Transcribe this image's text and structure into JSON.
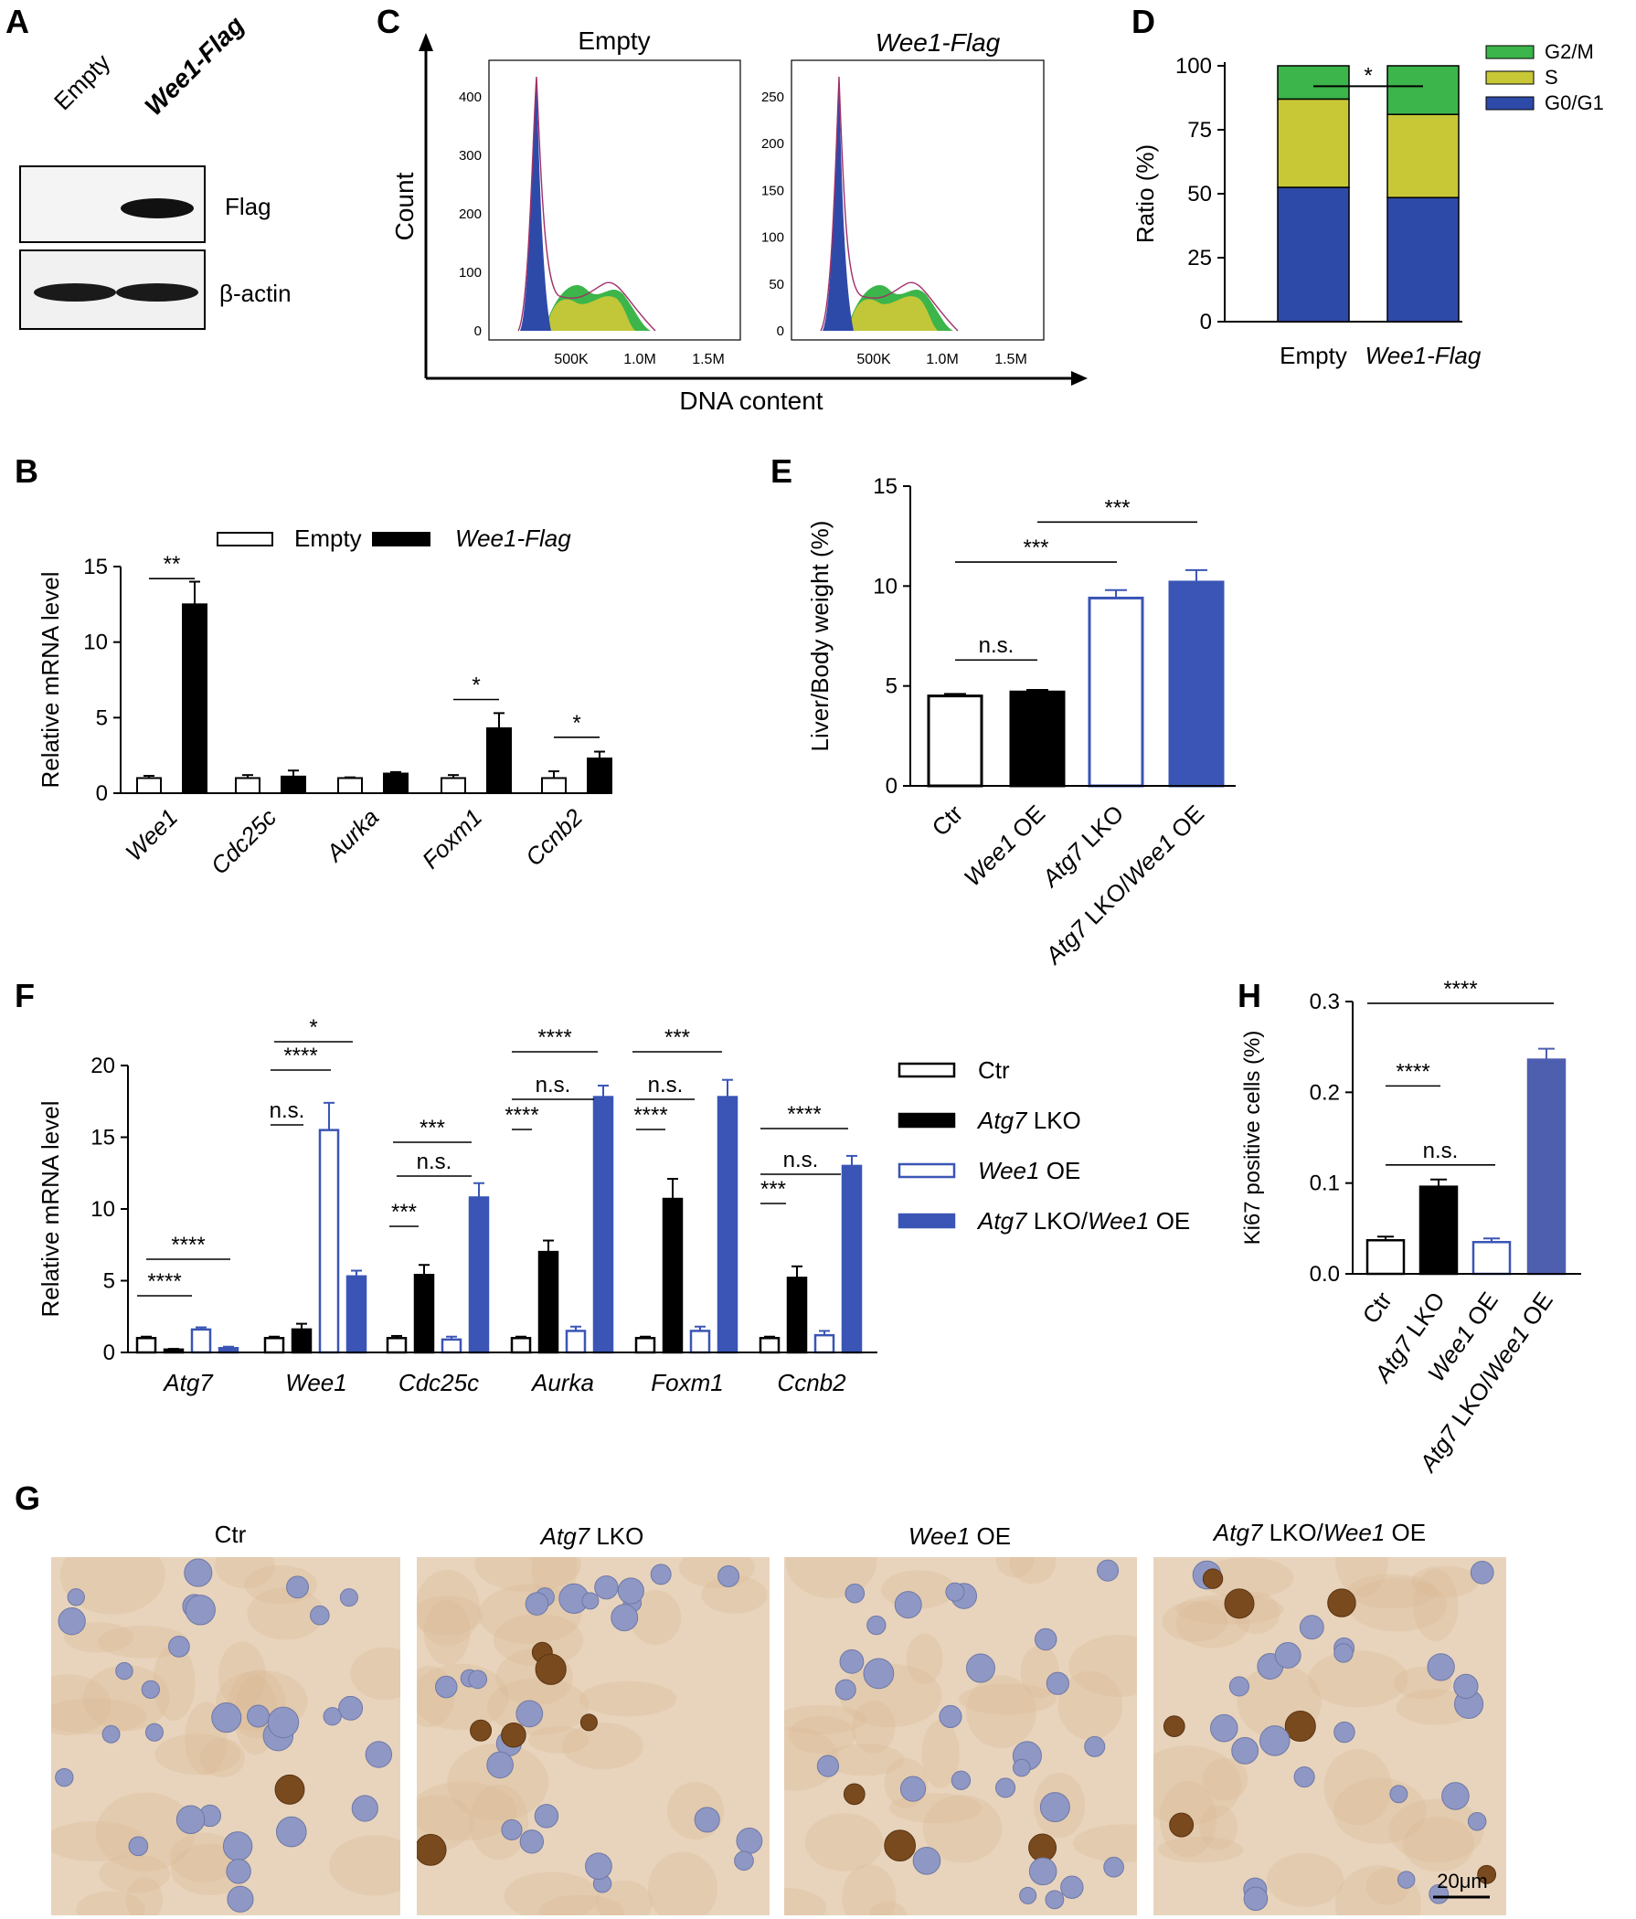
{
  "colors": {
    "g2m": "#3cb54a",
    "s": "#c8c837",
    "g0g1": "#2e4aa8",
    "ctr_fill": "#ffffff",
    "lko_fill": "#000000",
    "oe_outline": "#3a55b5",
    "combo_fill": "#3a55b5",
    "h_combo_fill": "#4e5fb0",
    "dna_stain": "#c9a27a",
    "nucleus": "#8f98c4",
    "ki67_positive": "#7a4a1f"
  },
  "panels": {
    "A": "A",
    "B": "B",
    "C": "C",
    "D": "D",
    "E": "E",
    "F": "F",
    "G": "G",
    "H": "H"
  },
  "panel_a": {
    "lanes": [
      "Empty",
      "Wee1-Flag"
    ],
    "bands": [
      "Flag",
      "β-actin"
    ]
  },
  "panel_c": {
    "axis_y": "Count",
    "axis_x": "DNA content",
    "plots": [
      {
        "title": "Empty",
        "yticks": [
          "0",
          "100",
          "200",
          "300",
          "400"
        ],
        "xticks": [
          "500K",
          "1.0M",
          "1.5M"
        ]
      },
      {
        "title": "Wee1-Flag",
        "yticks": [
          "0",
          "50",
          "100",
          "150",
          "200",
          "250"
        ],
        "xticks": [
          "500K",
          "1.0M",
          "1.5M"
        ]
      }
    ]
  },
  "panel_g": {
    "titles": [
      {
        "italic": "",
        "plain": "Ctr"
      },
      {
        "italic": "Atg7",
        "plain": " LKO"
      },
      {
        "italic": "Wee1",
        "plain": " OE"
      },
      {
        "italic": "Atg7",
        "plain": " LKO/",
        "italic2": "Wee1",
        "plain2": " OE"
      }
    ],
    "scale_bar": "20μm"
  },
  "chart_data": [
    {
      "panel": "B",
      "type": "bar",
      "ylabel": "Relative mRNA level",
      "ylim": [
        0,
        15
      ],
      "yticks": [
        0,
        5,
        10,
        15
      ],
      "categories": [
        "Wee1",
        "Cdc25c",
        "Aurka",
        "Foxm1",
        "Ccnb2"
      ],
      "series": [
        {
          "name": "Empty",
          "values": [
            1.0,
            1.0,
            1.0,
            1.0,
            1.0
          ],
          "errors": [
            0.15,
            0.2,
            0.05,
            0.2,
            0.45
          ]
        },
        {
          "name": "Wee1-Flag",
          "values": [
            12.5,
            1.1,
            1.3,
            4.3,
            2.3
          ],
          "errors": [
            1.5,
            0.4,
            0.1,
            1.0,
            0.45
          ]
        }
      ],
      "significance": [
        {
          "label": "**",
          "category": "Wee1"
        },
        {
          "label": "*",
          "category": "Foxm1"
        },
        {
          "label": "*",
          "category": "Ccnb2"
        }
      ]
    },
    {
      "panel": "D",
      "type": "bar",
      "stacked": true,
      "ylabel": "Ratio (%)",
      "ylim": [
        0,
        100
      ],
      "yticks": [
        0,
        25,
        50,
        75,
        100
      ],
      "categories": [
        "Empty",
        "Wee1-Flag"
      ],
      "series": [
        {
          "name": "G0/G1",
          "values": [
            52.5,
            48.5
          ]
        },
        {
          "name": "S",
          "values": [
            34.5,
            32.5
          ]
        },
        {
          "name": "G2/M",
          "values": [
            13.0,
            19.0
          ]
        }
      ],
      "legend": [
        "G2/M",
        "S",
        "G0/G1"
      ],
      "significance": [
        {
          "label": "*"
        }
      ]
    },
    {
      "panel": "E",
      "type": "bar",
      "ylabel": "Liver/Body weight (%)",
      "ylim": [
        0,
        15
      ],
      "yticks": [
        0,
        5,
        10,
        15
      ],
      "categories": [
        "Ctr",
        "Wee1 OE",
        "Atg7 LKO",
        "Atg7 LKO/Wee1 OE"
      ],
      "values": [
        4.5,
        4.7,
        9.4,
        10.2
      ],
      "errors": [
        0.1,
        0.1,
        0.4,
        0.6
      ],
      "significance": [
        {
          "label": "n.s."
        },
        {
          "label": "***"
        },
        {
          "label": "***"
        }
      ]
    },
    {
      "panel": "F",
      "type": "bar",
      "ylabel": "Relative mRNA level",
      "ylim": [
        0,
        20
      ],
      "yticks": [
        0,
        5,
        10,
        15,
        20
      ],
      "categories": [
        "Atg7",
        "Wee1",
        "Cdc25c",
        "Aurka",
        "Foxm1",
        "Ccnb2"
      ],
      "series": [
        {
          "name": "Ctr",
          "values": [
            1.0,
            1.0,
            1.0,
            1.0,
            1.0,
            1.0
          ],
          "errors": [
            0.1,
            0.1,
            0.15,
            0.1,
            0.1,
            0.1
          ]
        },
        {
          "name": "Atg7 LKO",
          "values": [
            0.2,
            1.6,
            5.4,
            7.0,
            10.7,
            5.2
          ],
          "errors": [
            0.05,
            0.4,
            0.7,
            0.8,
            1.4,
            0.8
          ]
        },
        {
          "name": "Wee1 OE",
          "values": [
            1.6,
            15.5,
            0.9,
            1.5,
            1.5,
            1.2
          ],
          "errors": [
            0.15,
            1.9,
            0.2,
            0.3,
            0.3,
            0.3
          ]
        },
        {
          "name": "Atg7 LKO/Wee1 OE",
          "values": [
            0.3,
            5.3,
            10.8,
            17.8,
            17.8,
            13.0
          ],
          "errors": [
            0.1,
            0.4,
            1.0,
            0.8,
            1.2,
            0.7
          ]
        }
      ],
      "significance_labels": [
        "****",
        "****",
        "n.s.",
        "****",
        "*",
        "***",
        "n.s.",
        "***",
        "****",
        "n.s.",
        "****",
        "****",
        "n.s.",
        "***",
        "***",
        "n.s.",
        "****"
      ]
    },
    {
      "panel": "H",
      "type": "bar",
      "ylabel": "Ki67 positive cells (%)",
      "ylim": [
        0,
        0.3
      ],
      "yticks": [
        "0.0",
        "0.1",
        "0.2",
        "0.3"
      ],
      "categories": [
        "Ctr",
        "Atg7 LKO",
        "Wee1 OE",
        "Atg7 LKO/Wee1 OE"
      ],
      "values": [
        0.037,
        0.096,
        0.035,
        0.236
      ],
      "errors": [
        0.004,
        0.008,
        0.004,
        0.012
      ],
      "significance": [
        {
          "label": "****"
        },
        {
          "label": "n.s."
        },
        {
          "label": "****"
        }
      ]
    }
  ]
}
